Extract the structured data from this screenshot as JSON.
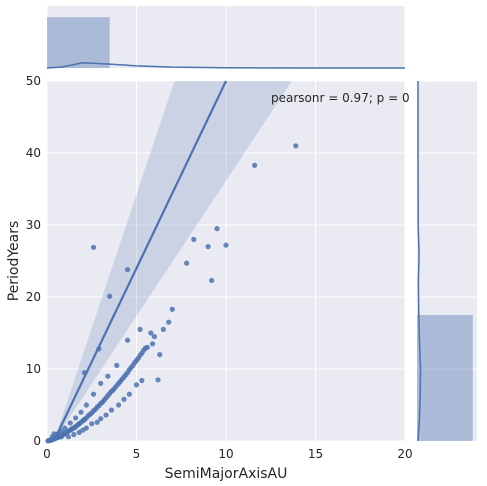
{
  "chart_data": {
    "type": "scatter",
    "title": "",
    "xlabel": "SemiMajorAxisAU",
    "ylabel": "PeriodYears",
    "xlim": [
      0,
      20
    ],
    "ylim": [
      0,
      50
    ],
    "x_ticks": [
      "0",
      "5",
      "10",
      "15",
      "20"
    ],
    "y_ticks": [
      "0",
      "10",
      "20",
      "30",
      "40",
      "50"
    ],
    "annotation": "pearsonr = 0.97; p = 0",
    "grid": true,
    "background": "#eaeaf2",
    "point_color": "#4c72b0",
    "regression": {
      "slope": 5.2,
      "intercept": -2.0,
      "ci_upper_slope": 7.3,
      "ci_lower_slope": 3.8
    },
    "points": [
      {
        "x": 0.05,
        "y": 0.02
      },
      {
        "x": 0.1,
        "y": 0.05
      },
      {
        "x": 0.15,
        "y": 0.1
      },
      {
        "x": 0.2,
        "y": 0.08
      },
      {
        "x": 0.25,
        "y": 0.15
      },
      {
        "x": 0.3,
        "y": 0.2
      },
      {
        "x": 0.35,
        "y": 0.25
      },
      {
        "x": 0.4,
        "y": 0.3
      },
      {
        "x": 0.45,
        "y": 0.35
      },
      {
        "x": 0.5,
        "y": 0.4
      },
      {
        "x": 0.55,
        "y": 0.45
      },
      {
        "x": 0.6,
        "y": 0.5
      },
      {
        "x": 0.65,
        "y": 0.55
      },
      {
        "x": 0.7,
        "y": 0.6
      },
      {
        "x": 0.75,
        "y": 0.7
      },
      {
        "x": 0.8,
        "y": 0.75
      },
      {
        "x": 0.85,
        "y": 0.8
      },
      {
        "x": 0.9,
        "y": 0.9
      },
      {
        "x": 0.95,
        "y": 1.0
      },
      {
        "x": 1.0,
        "y": 1.0
      },
      {
        "x": 1.05,
        "y": 1.1
      },
      {
        "x": 1.1,
        "y": 1.2
      },
      {
        "x": 1.15,
        "y": 1.3
      },
      {
        "x": 1.2,
        "y": 1.4
      },
      {
        "x": 1.3,
        "y": 1.5
      },
      {
        "x": 1.35,
        "y": 1.6
      },
      {
        "x": 1.4,
        "y": 1.7
      },
      {
        "x": 1.5,
        "y": 1.8
      },
      {
        "x": 1.55,
        "y": 1.9
      },
      {
        "x": 1.6,
        "y": 2.0
      },
      {
        "x": 1.7,
        "y": 2.2
      },
      {
        "x": 1.75,
        "y": 2.3
      },
      {
        "x": 1.8,
        "y": 2.4
      },
      {
        "x": 1.9,
        "y": 2.6
      },
      {
        "x": 2.0,
        "y": 2.8
      },
      {
        "x": 2.05,
        "y": 2.9
      },
      {
        "x": 2.1,
        "y": 3.0
      },
      {
        "x": 2.2,
        "y": 3.2
      },
      {
        "x": 2.3,
        "y": 3.5
      },
      {
        "x": 2.4,
        "y": 3.7
      },
      {
        "x": 2.5,
        "y": 3.9
      },
      {
        "x": 2.6,
        "y": 4.2
      },
      {
        "x": 2.7,
        "y": 4.4
      },
      {
        "x": 2.8,
        "y": 4.7
      },
      {
        "x": 2.9,
        "y": 4.9
      },
      {
        "x": 3.0,
        "y": 5.2
      },
      {
        "x": 3.1,
        "y": 5.4
      },
      {
        "x": 3.2,
        "y": 5.7
      },
      {
        "x": 3.3,
        "y": 6.0
      },
      {
        "x": 3.4,
        "y": 6.3
      },
      {
        "x": 3.5,
        "y": 6.6
      },
      {
        "x": 3.6,
        "y": 6.9
      },
      {
        "x": 3.7,
        "y": 7.1
      },
      {
        "x": 3.8,
        "y": 7.4
      },
      {
        "x": 3.9,
        "y": 7.7
      },
      {
        "x": 4.0,
        "y": 8.0
      },
      {
        "x": 4.1,
        "y": 8.3
      },
      {
        "x": 4.2,
        "y": 8.6
      },
      {
        "x": 4.3,
        "y": 8.9
      },
      {
        "x": 4.4,
        "y": 9.2
      },
      {
        "x": 4.5,
        "y": 9.5
      },
      {
        "x": 4.6,
        "y": 9.9
      },
      {
        "x": 4.7,
        "y": 10.2
      },
      {
        "x": 4.8,
        "y": 10.5
      },
      {
        "x": 4.9,
        "y": 10.9
      },
      {
        "x": 5.0,
        "y": 11.2
      },
      {
        "x": 5.1,
        "y": 11.5
      },
      {
        "x": 5.2,
        "y": 11.9
      },
      {
        "x": 5.3,
        "y": 12.2
      },
      {
        "x": 5.4,
        "y": 12.6
      },
      {
        "x": 5.5,
        "y": 12.9
      },
      {
        "x": 1.2,
        "y": 0.6
      },
      {
        "x": 1.5,
        "y": 0.9
      },
      {
        "x": 1.8,
        "y": 1.2
      },
      {
        "x": 2.0,
        "y": 1.5
      },
      {
        "x": 2.2,
        "y": 1.8
      },
      {
        "x": 2.5,
        "y": 2.4
      },
      {
        "x": 2.8,
        "y": 2.6
      },
      {
        "x": 3.0,
        "y": 3.1
      },
      {
        "x": 3.3,
        "y": 3.6
      },
      {
        "x": 3.6,
        "y": 4.3
      },
      {
        "x": 4.0,
        "y": 5.0
      },
      {
        "x": 4.3,
        "y": 5.8
      },
      {
        "x": 4.6,
        "y": 6.5
      },
      {
        "x": 5.0,
        "y": 7.8
      },
      {
        "x": 5.3,
        "y": 8.4
      },
      {
        "x": 1.0,
        "y": 1.8
      },
      {
        "x": 1.3,
        "y": 2.5
      },
      {
        "x": 1.6,
        "y": 3.2
      },
      {
        "x": 1.9,
        "y": 4.0
      },
      {
        "x": 2.2,
        "y": 5.0
      },
      {
        "x": 2.6,
        "y": 6.5
      },
      {
        "x": 3.0,
        "y": 8.0
      },
      {
        "x": 3.4,
        "y": 9.0
      },
      {
        "x": 3.9,
        "y": 10.5
      },
      {
        "x": 0.3,
        "y": 0.6
      },
      {
        "x": 0.6,
        "y": 1.0
      },
      {
        "x": 0.8,
        "y": 1.4
      },
      {
        "x": 5.6,
        "y": 13.0
      },
      {
        "x": 5.8,
        "y": 15.0
      },
      {
        "x": 5.9,
        "y": 13.5
      },
      {
        "x": 6.0,
        "y": 14.5
      },
      {
        "x": 6.2,
        "y": 8.5
      },
      {
        "x": 6.5,
        "y": 15.5
      },
      {
        "x": 6.8,
        "y": 16.5
      },
      {
        "x": 7.0,
        "y": 18.3
      },
      {
        "x": 6.3,
        "y": 12.0
      },
      {
        "x": 4.5,
        "y": 14.0
      },
      {
        "x": 2.1,
        "y": 9.5
      },
      {
        "x": 2.9,
        "y": 12.8
      },
      {
        "x": 5.2,
        "y": 15.5
      },
      {
        "x": 3.5,
        "y": 20.1
      },
      {
        "x": 4.5,
        "y": 23.8
      },
      {
        "x": 2.6,
        "y": 26.9
      },
      {
        "x": 7.8,
        "y": 24.7
      },
      {
        "x": 8.2,
        "y": 28.0
      },
      {
        "x": 9.0,
        "y": 27.0
      },
      {
        "x": 9.5,
        "y": 29.5
      },
      {
        "x": 10.0,
        "y": 27.2
      },
      {
        "x": 9.2,
        "y": 22.3
      },
      {
        "x": 11.6,
        "y": 38.3
      },
      {
        "x": 13.9,
        "y": 41.0
      },
      {
        "x": 0.8,
        "y": 0.6
      },
      {
        "x": 0.4,
        "y": 1.0
      }
    ]
  },
  "marginal_x": {
    "bins": [
      {
        "range": [
          0,
          3.5
        ],
        "height": 0.82
      }
    ],
    "kde": [
      [
        0,
        0.0
      ],
      [
        0.8,
        0.02
      ],
      [
        2.0,
        0.12
      ],
      [
        3.5,
        0.09
      ],
      [
        5.0,
        0.05
      ],
      [
        7.0,
        0.02
      ],
      [
        10.0,
        0.005
      ],
      [
        15.0,
        0.0
      ],
      [
        20.0,
        0.0
      ]
    ]
  },
  "marginal_y": {
    "bins": [
      {
        "range": [
          0,
          17.5
        ],
        "height": 0.93
      }
    ],
    "kde": [
      [
        0,
        0.0
      ],
      [
        3,
        0.04
      ],
      [
        6,
        0.06
      ],
      [
        10,
        0.07
      ],
      [
        14,
        0.04
      ],
      [
        18,
        0.02
      ],
      [
        22,
        0.01
      ],
      [
        26,
        0.03
      ],
      [
        30,
        0.005
      ],
      [
        40,
        0.0
      ],
      [
        50,
        0.0
      ]
    ]
  }
}
